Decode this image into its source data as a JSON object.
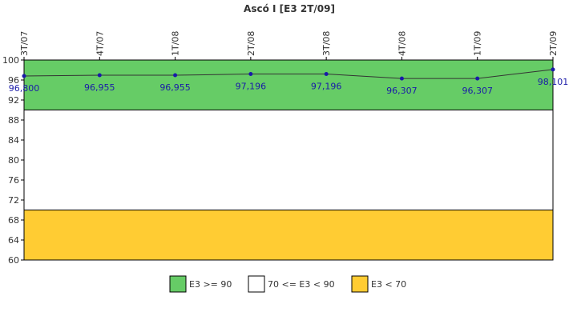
{
  "chart_data": {
    "type": "line",
    "title": "Ascó I [E3 2T/09]",
    "categories": [
      "3T/07",
      "4T/07",
      "1T/08",
      "2T/08",
      "3T/08",
      "4T/08",
      "1T/09",
      "2T/09"
    ],
    "series": [
      {
        "values": [
          96.8,
          96.955,
          96.955,
          97.196,
          97.196,
          96.307,
          96.307,
          98.101
        ],
        "labels": [
          "96,800",
          "96,955",
          "96,955",
          "97,196",
          "97,196",
          "96,307",
          "96,307",
          "98,101"
        ],
        "color": "#1a1aa8"
      }
    ],
    "yticks": [
      "100",
      "96",
      "92",
      "88",
      "84",
      "80",
      "76",
      "72",
      "68",
      "64",
      "60"
    ],
    "ylim": [
      60,
      100
    ],
    "bands": [
      {
        "from": 90,
        "to": 100,
        "color": "#66cc66"
      },
      {
        "from": 70,
        "to": 90,
        "color": "#ffffff"
      },
      {
        "from": 60,
        "to": 70,
        "color": "#ffcc33"
      }
    ],
    "legend": {
      "position": "bottom",
      "items": [
        {
          "label": "E3 >= 90",
          "color": "#66cc66"
        },
        {
          "label": "70 <= E3 < 90",
          "color": "#ffffff"
        },
        {
          "label": "E3 < 70",
          "color": "#ffcc33"
        }
      ]
    }
  }
}
